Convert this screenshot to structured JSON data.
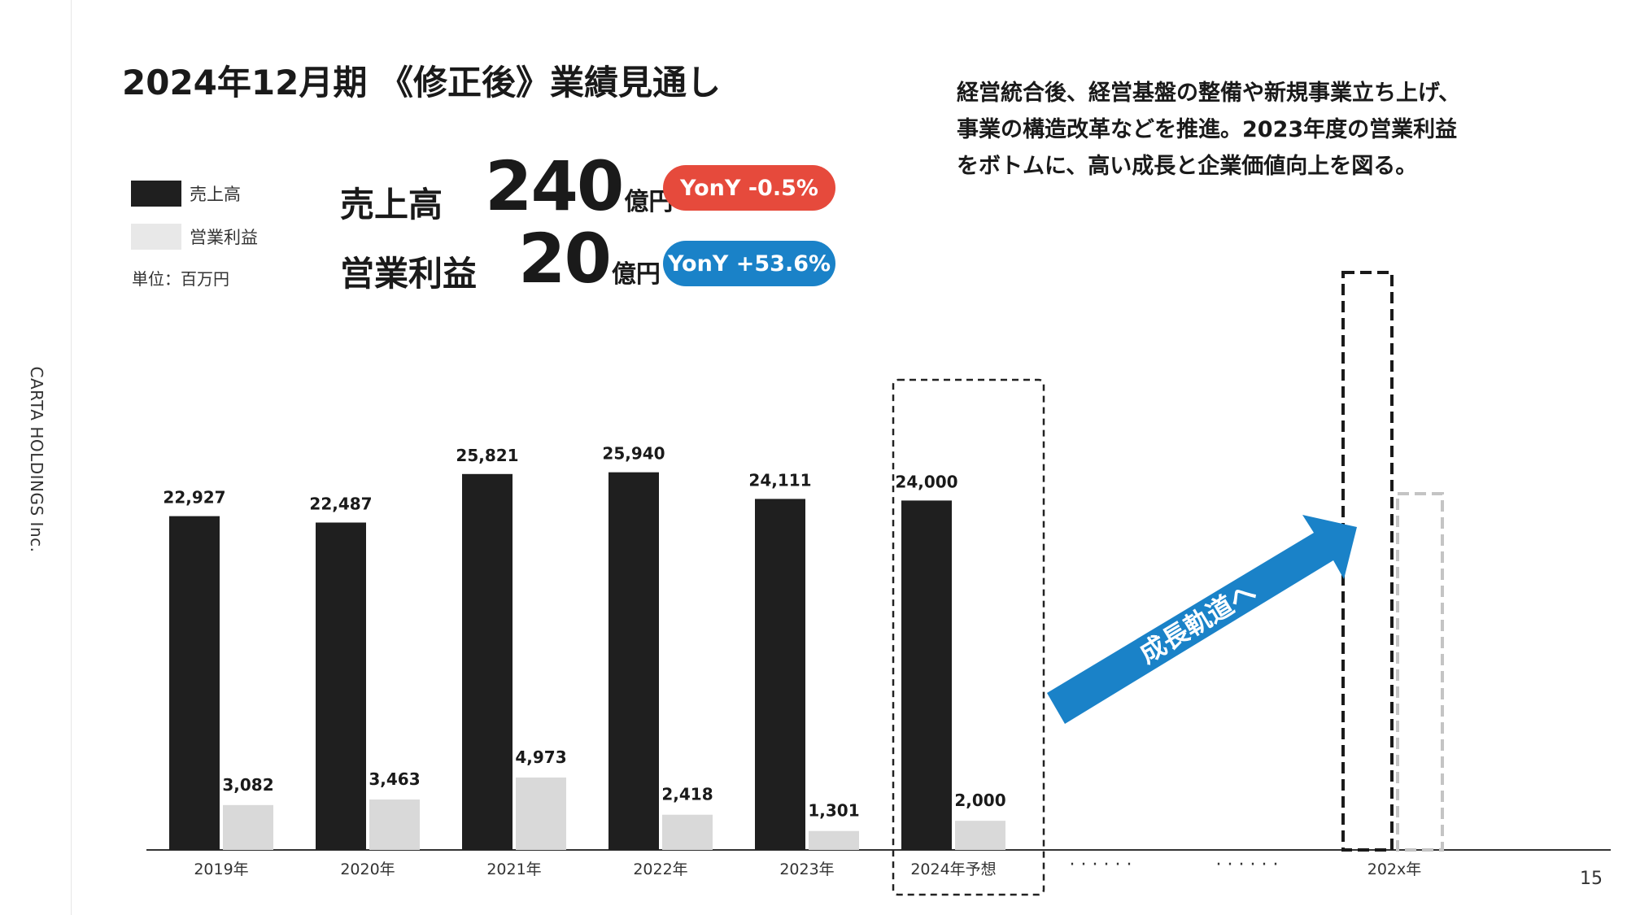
{
  "slide": {
    "title": "2024年12月期 《修正後》業績見通し",
    "company": "CARTA HOLDINGS Inc.",
    "page_number": "15",
    "description": [
      "経営統合後、経営基盤の整備や新規事業立ち上げ、",
      "事業の構造改革などを推進。2023年度の営業利益",
      "をボトムに、高い成長と企業価値向上を図る。"
    ]
  },
  "legend": [
    {
      "label": "売上高",
      "color": "#1f1f1f"
    },
    {
      "label": "営業利益",
      "color": "#e8e8e8"
    }
  ],
  "unit_label": "単位：百万円",
  "kpis": [
    {
      "label": "売上高",
      "value": "240",
      "unit": "億円",
      "yony": "YonY -0.5%",
      "color": "#e64a3c"
    },
    {
      "label": "営業利益",
      "value": "20",
      "unit": "億円",
      "yony": "YonY +53.6%",
      "color": "#1a82c8"
    }
  ],
  "chart_data": {
    "type": "bar",
    "categories": [
      "2019年",
      "2020年",
      "2021年",
      "2022年",
      "2023年",
      "2024年予想"
    ],
    "series": [
      {
        "name": "売上高",
        "values": [
          22927,
          22487,
          25821,
          25940,
          24111,
          24000
        ],
        "color": "#1f1f1f"
      },
      {
        "name": "営業利益",
        "values": [
          3082,
          3463,
          4973,
          2418,
          1301,
          2000
        ],
        "color": "#d9d9d9"
      }
    ],
    "data_labels": {
      "売上高": [
        "22,927",
        "22,487",
        "25,821",
        "25,940",
        "24,111",
        "24,000"
      ],
      "営業利益": [
        "3,082",
        "3,463",
        "4,973",
        "2,418",
        "1,301",
        "2,000"
      ]
    },
    "highlight_category": "2024年予想",
    "ellipsis_labels": [
      "· · · · · ·",
      "· · · · · ·"
    ],
    "future_category": "202x年",
    "arrow_label": "成長軌道へ",
    "arrow_color": "#1a82c8",
    "grid": false
  }
}
